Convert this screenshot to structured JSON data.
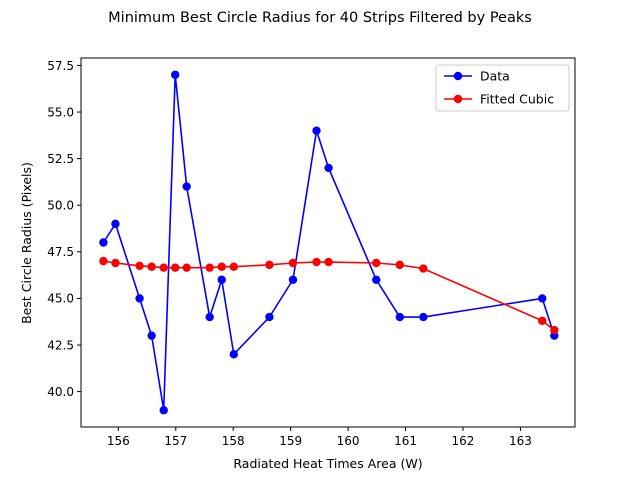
{
  "chart_data": {
    "type": "line",
    "title": "Minimum Best Circle Radius for 40 Strips Filtered by Peaks",
    "xlabel": "Radiated Heat Times Area (W)",
    "ylabel": "Best Circle Radius (Pixels)",
    "xlim": [
      155.35,
      163.95
    ],
    "ylim": [
      38.1,
      57.9
    ],
    "xticks": [
      156,
      157,
      158,
      159,
      160,
      161,
      162,
      163
    ],
    "yticks": [
      40.0,
      42.5,
      45.0,
      47.5,
      50.0,
      52.5,
      55.0,
      57.5
    ],
    "xtick_labels": [
      "156",
      "157",
      "158",
      "159",
      "160",
      "161",
      "162",
      "163"
    ],
    "ytick_labels": [
      "40.0",
      "42.5",
      "45.0",
      "47.5",
      "50.0",
      "52.5",
      "55.0",
      "57.5"
    ],
    "grid": false,
    "legend_position": "top-right",
    "series": [
      {
        "name": "Data",
        "color": "#0000ff",
        "marker": "circle",
        "x": [
          155.74,
          155.95,
          156.37,
          156.58,
          156.79,
          156.99,
          157.19,
          157.59,
          157.8,
          158.01,
          158.63,
          159.04,
          159.45,
          159.66,
          160.49,
          160.9,
          161.31,
          163.38,
          163.59
        ],
        "y": [
          48,
          49,
          45,
          43,
          39,
          57,
          51,
          44,
          46,
          42,
          44,
          46,
          54,
          52,
          46,
          44,
          44,
          45,
          43
        ]
      },
      {
        "name": "Fitted Cubic",
        "color": "#ff0000",
        "marker": "circle",
        "x": [
          155.74,
          155.95,
          156.37,
          156.58,
          156.79,
          156.99,
          157.19,
          157.59,
          157.8,
          158.01,
          158.63,
          159.04,
          159.45,
          159.66,
          160.49,
          160.9,
          161.31,
          163.38,
          163.59
        ],
        "y": [
          47.0,
          46.9,
          46.75,
          46.7,
          46.65,
          46.65,
          46.65,
          46.65,
          46.7,
          46.7,
          46.8,
          46.9,
          46.95,
          46.95,
          46.9,
          46.8,
          46.6,
          43.8,
          43.3
        ]
      }
    ]
  }
}
